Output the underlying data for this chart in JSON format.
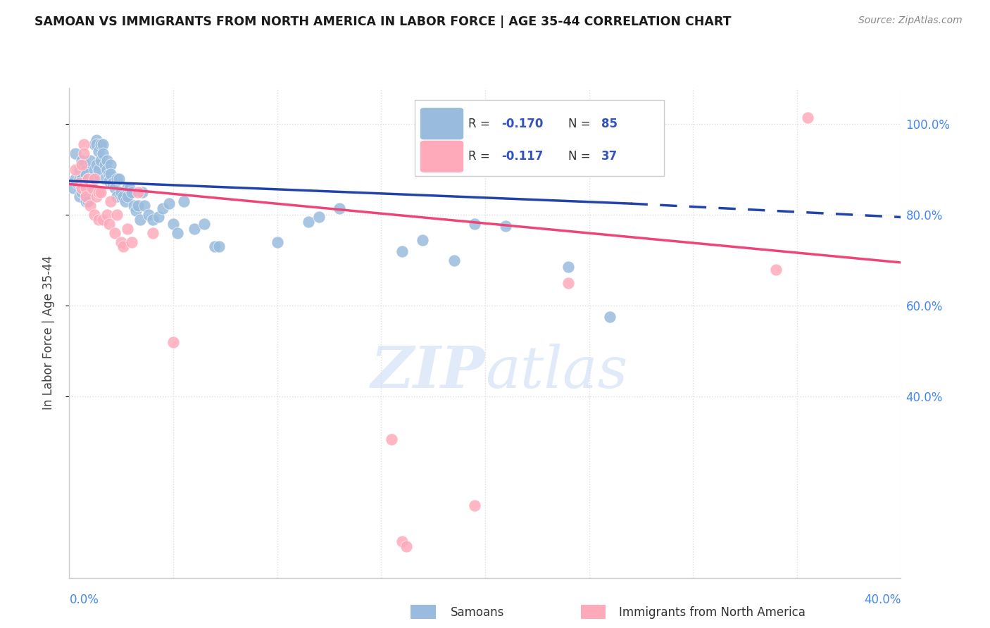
{
  "title": "SAMOAN VS IMMIGRANTS FROM NORTH AMERICA IN LABOR FORCE | AGE 35-44 CORRELATION CHART",
  "source": "Source: ZipAtlas.com",
  "ylabel": "In Labor Force | Age 35-44",
  "xlim": [
    0.0,
    0.4
  ],
  "ylim": [
    0.0,
    1.08
  ],
  "ytick_vals": [
    0.4,
    0.6,
    0.8,
    1.0
  ],
  "ytick_labels": [
    "40.0%",
    "60.0%",
    "80.0%",
    "100.0%"
  ],
  "watermark": "ZIPatlas",
  "blue_color": "#99BBDD",
  "pink_color": "#FFAABB",
  "trendline_blue_color": "#2244AA",
  "trendline_pink_color": "#EE4477",
  "blue_trendline_solid": [
    [
      0.0,
      0.875
    ],
    [
      0.27,
      0.825
    ]
  ],
  "blue_trendline_dash": [
    [
      0.27,
      0.825
    ],
    [
      0.4,
      0.795
    ]
  ],
  "pink_trendline": [
    [
      0.0,
      0.868
    ],
    [
      0.4,
      0.695
    ]
  ],
  "blue_scatter": [
    [
      0.002,
      0.86
    ],
    [
      0.003,
      0.88
    ],
    [
      0.003,
      0.935
    ],
    [
      0.004,
      0.87
    ],
    [
      0.005,
      0.9
    ],
    [
      0.005,
      0.84
    ],
    [
      0.005,
      0.88
    ],
    [
      0.006,
      0.92
    ],
    [
      0.006,
      0.88
    ],
    [
      0.006,
      0.85
    ],
    [
      0.007,
      0.91
    ],
    [
      0.007,
      0.87
    ],
    [
      0.007,
      0.86
    ],
    [
      0.008,
      0.9
    ],
    [
      0.008,
      0.89
    ],
    [
      0.008,
      0.84
    ],
    [
      0.008,
      0.83
    ],
    [
      0.009,
      0.88
    ],
    [
      0.009,
      0.85
    ],
    [
      0.009,
      0.83
    ],
    [
      0.01,
      0.92
    ],
    [
      0.01,
      0.87
    ],
    [
      0.01,
      0.86
    ],
    [
      0.011,
      0.88
    ],
    [
      0.011,
      0.86
    ],
    [
      0.012,
      0.955
    ],
    [
      0.012,
      0.9
    ],
    [
      0.012,
      0.88
    ],
    [
      0.013,
      0.965
    ],
    [
      0.013,
      0.955
    ],
    [
      0.013,
      0.91
    ],
    [
      0.014,
      0.94
    ],
    [
      0.014,
      0.9
    ],
    [
      0.015,
      0.955
    ],
    [
      0.015,
      0.92
    ],
    [
      0.016,
      0.955
    ],
    [
      0.016,
      0.935
    ],
    [
      0.017,
      0.91
    ],
    [
      0.017,
      0.88
    ],
    [
      0.018,
      0.92
    ],
    [
      0.018,
      0.9
    ],
    [
      0.019,
      0.89
    ],
    [
      0.019,
      0.875
    ],
    [
      0.02,
      0.91
    ],
    [
      0.02,
      0.89
    ],
    [
      0.021,
      0.87
    ],
    [
      0.022,
      0.86
    ],
    [
      0.023,
      0.88
    ],
    [
      0.023,
      0.84
    ],
    [
      0.024,
      0.88
    ],
    [
      0.025,
      0.85
    ],
    [
      0.026,
      0.84
    ],
    [
      0.027,
      0.83
    ],
    [
      0.028,
      0.86
    ],
    [
      0.028,
      0.84
    ],
    [
      0.029,
      0.86
    ],
    [
      0.03,
      0.85
    ],
    [
      0.031,
      0.82
    ],
    [
      0.032,
      0.81
    ],
    [
      0.033,
      0.82
    ],
    [
      0.034,
      0.79
    ],
    [
      0.035,
      0.85
    ],
    [
      0.036,
      0.82
    ],
    [
      0.038,
      0.8
    ],
    [
      0.04,
      0.79
    ],
    [
      0.043,
      0.795
    ],
    [
      0.045,
      0.815
    ],
    [
      0.048,
      0.825
    ],
    [
      0.05,
      0.78
    ],
    [
      0.052,
      0.76
    ],
    [
      0.055,
      0.83
    ],
    [
      0.06,
      0.77
    ],
    [
      0.065,
      0.78
    ],
    [
      0.07,
      0.73
    ],
    [
      0.072,
      0.73
    ],
    [
      0.1,
      0.74
    ],
    [
      0.115,
      0.785
    ],
    [
      0.12,
      0.795
    ],
    [
      0.13,
      0.815
    ],
    [
      0.16,
      0.72
    ],
    [
      0.17,
      0.745
    ],
    [
      0.185,
      0.7
    ],
    [
      0.195,
      0.78
    ],
    [
      0.21,
      0.775
    ],
    [
      0.24,
      0.685
    ],
    [
      0.26,
      0.575
    ]
  ],
  "pink_scatter": [
    [
      0.003,
      0.9
    ],
    [
      0.005,
      0.87
    ],
    [
      0.006,
      0.91
    ],
    [
      0.006,
      0.86
    ],
    [
      0.007,
      0.955
    ],
    [
      0.007,
      0.935
    ],
    [
      0.008,
      0.86
    ],
    [
      0.008,
      0.84
    ],
    [
      0.009,
      0.88
    ],
    [
      0.01,
      0.82
    ],
    [
      0.011,
      0.86
    ],
    [
      0.012,
      0.88
    ],
    [
      0.012,
      0.8
    ],
    [
      0.013,
      0.84
    ],
    [
      0.014,
      0.85
    ],
    [
      0.014,
      0.79
    ],
    [
      0.015,
      0.85
    ],
    [
      0.016,
      0.79
    ],
    [
      0.018,
      0.8
    ],
    [
      0.019,
      0.78
    ],
    [
      0.02,
      0.83
    ],
    [
      0.022,
      0.76
    ],
    [
      0.023,
      0.8
    ],
    [
      0.025,
      0.74
    ],
    [
      0.026,
      0.73
    ],
    [
      0.028,
      0.77
    ],
    [
      0.03,
      0.74
    ],
    [
      0.033,
      0.85
    ],
    [
      0.04,
      0.76
    ],
    [
      0.05,
      0.52
    ],
    [
      0.155,
      0.305
    ],
    [
      0.16,
      0.08
    ],
    [
      0.162,
      0.07
    ],
    [
      0.195,
      0.16
    ],
    [
      0.24,
      0.65
    ],
    [
      0.34,
      0.68
    ],
    [
      0.355,
      1.015
    ]
  ]
}
